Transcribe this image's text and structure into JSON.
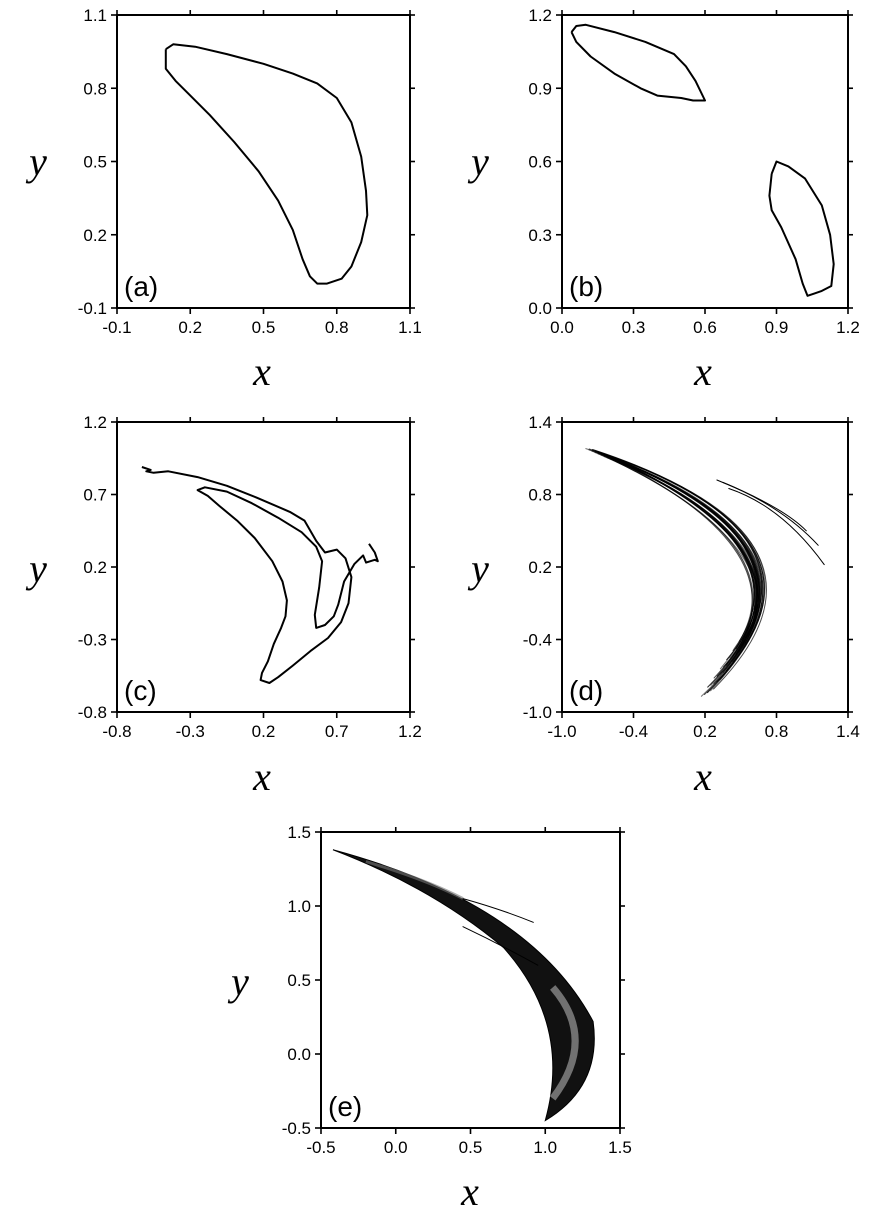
{
  "chart_data": [
    {
      "type": "scatter",
      "panel_label": "(a)",
      "xlabel": "x",
      "ylabel": "y",
      "xlim": [
        -0.1,
        1.1
      ],
      "ylim": [
        -0.1,
        1.1
      ],
      "xticks": [
        -0.1,
        0.2,
        0.5,
        0.8,
        1.1
      ],
      "yticks": [
        -0.1,
        0.2,
        0.5,
        0.8,
        1.1
      ],
      "xtick_labels": [
        "-0.1",
        "0.2",
        "0.5",
        "0.8",
        "1.1"
      ],
      "ytick_labels": [
        "-0.1",
        "0.2",
        "0.5",
        "0.8",
        "1.1"
      ],
      "curves": [
        [
          [
            0.1,
            0.96
          ],
          [
            0.13,
            0.98
          ],
          [
            0.22,
            0.97
          ],
          [
            0.35,
            0.94
          ],
          [
            0.5,
            0.9
          ],
          [
            0.62,
            0.86
          ],
          [
            0.72,
            0.82
          ],
          [
            0.8,
            0.76
          ],
          [
            0.86,
            0.66
          ],
          [
            0.9,
            0.52
          ],
          [
            0.92,
            0.38
          ],
          [
            0.925,
            0.28
          ],
          [
            0.9,
            0.17
          ],
          [
            0.86,
            0.07
          ],
          [
            0.82,
            0.02
          ],
          [
            0.76,
            0.0
          ],
          [
            0.72,
            0.0
          ],
          [
            0.69,
            0.03
          ],
          [
            0.66,
            0.1
          ],
          [
            0.62,
            0.22
          ],
          [
            0.56,
            0.34
          ],
          [
            0.48,
            0.46
          ],
          [
            0.38,
            0.58
          ],
          [
            0.28,
            0.69
          ],
          [
            0.19,
            0.78
          ],
          [
            0.14,
            0.83
          ],
          [
            0.1,
            0.88
          ],
          [
            0.1,
            0.96
          ]
        ]
      ]
    },
    {
      "type": "scatter",
      "panel_label": "(b)",
      "xlabel": "x",
      "ylabel": "y",
      "xlim": [
        0.0,
        1.2
      ],
      "ylim": [
        0.0,
        1.2
      ],
      "xticks": [
        0.0,
        0.3,
        0.6,
        0.9,
        1.2
      ],
      "yticks": [
        0.0,
        0.3,
        0.6,
        0.9,
        1.2
      ],
      "xtick_labels": [
        "0.0",
        "0.3",
        "0.6",
        "0.9",
        "1.2"
      ],
      "ytick_labels": [
        "0.0",
        "0.3",
        "0.6",
        "0.9",
        "1.2"
      ],
      "curves": [
        [
          [
            0.04,
            1.13
          ],
          [
            0.06,
            1.155
          ],
          [
            0.1,
            1.16
          ],
          [
            0.22,
            1.13
          ],
          [
            0.35,
            1.09
          ],
          [
            0.47,
            1.04
          ],
          [
            0.52,
            0.99
          ],
          [
            0.56,
            0.93
          ],
          [
            0.6,
            0.85
          ],
          [
            0.55,
            0.85
          ],
          [
            0.5,
            0.86
          ],
          [
            0.4,
            0.87
          ],
          [
            0.33,
            0.9
          ],
          [
            0.22,
            0.96
          ],
          [
            0.12,
            1.03
          ],
          [
            0.06,
            1.09
          ],
          [
            0.04,
            1.13
          ]
        ],
        [
          [
            0.88,
            0.55
          ],
          [
            0.9,
            0.6
          ],
          [
            0.95,
            0.58
          ],
          [
            1.02,
            0.53
          ],
          [
            1.09,
            0.42
          ],
          [
            1.125,
            0.3
          ],
          [
            1.14,
            0.18
          ],
          [
            1.13,
            0.09
          ],
          [
            1.09,
            0.07
          ],
          [
            1.06,
            0.06
          ],
          [
            1.03,
            0.05
          ],
          [
            1.01,
            0.1
          ],
          [
            0.98,
            0.2
          ],
          [
            0.92,
            0.33
          ],
          [
            0.88,
            0.4
          ],
          [
            0.87,
            0.46
          ],
          [
            0.88,
            0.55
          ]
        ]
      ]
    },
    {
      "type": "scatter",
      "panel_label": "(c)",
      "xlabel": "x",
      "ylabel": "y",
      "xlim": [
        -0.8,
        1.2
      ],
      "ylim": [
        -0.8,
        1.2
      ],
      "xticks": [
        -0.8,
        -0.3,
        0.2,
        0.7,
        1.2
      ],
      "yticks": [
        -0.8,
        -0.3,
        0.2,
        0.7,
        1.2
      ],
      "xtick_labels": [
        "-0.8",
        "-0.3",
        "0.2",
        "0.7",
        "1.2"
      ],
      "ytick_labels": [
        "-0.8",
        "-0.3",
        "0.2",
        "0.7",
        "1.2"
      ],
      "curves": [
        [
          [
            -0.63,
            0.89
          ],
          [
            -0.57,
            0.87
          ],
          [
            -0.6,
            0.86
          ],
          [
            -0.55,
            0.85
          ],
          [
            -0.45,
            0.86
          ],
          [
            -0.25,
            0.82
          ],
          [
            -0.05,
            0.76
          ],
          [
            0.15,
            0.68
          ],
          [
            0.38,
            0.58
          ],
          [
            0.48,
            0.52
          ],
          [
            0.56,
            0.38
          ],
          [
            0.62,
            0.3
          ],
          [
            0.7,
            0.32
          ],
          [
            0.76,
            0.26
          ],
          [
            0.8,
            0.13
          ],
          [
            0.78,
            -0.05
          ],
          [
            0.73,
            -0.18
          ],
          [
            0.64,
            -0.29
          ],
          [
            0.52,
            -0.38
          ],
          [
            0.4,
            -0.48
          ],
          [
            0.3,
            -0.56
          ],
          [
            0.24,
            -0.6
          ],
          [
            0.18,
            -0.58
          ],
          [
            0.19,
            -0.53
          ],
          [
            0.23,
            -0.45
          ],
          [
            0.27,
            -0.33
          ],
          [
            0.32,
            -0.22
          ],
          [
            0.35,
            -0.14
          ],
          [
            0.36,
            -0.03
          ],
          [
            0.33,
            0.1
          ],
          [
            0.26,
            0.24
          ],
          [
            0.14,
            0.4
          ],
          [
            0.02,
            0.52
          ],
          [
            -0.1,
            0.62
          ],
          [
            -0.18,
            0.69
          ],
          [
            -0.25,
            0.73
          ],
          [
            -0.2,
            0.75
          ],
          [
            -0.05,
            0.72
          ],
          [
            0.12,
            0.64
          ],
          [
            0.3,
            0.54
          ],
          [
            0.46,
            0.44
          ],
          [
            0.56,
            0.34
          ],
          [
            0.6,
            0.24
          ],
          [
            0.58,
            0.06
          ],
          [
            0.55,
            -0.13
          ],
          [
            0.56,
            -0.22
          ],
          [
            0.62,
            -0.2
          ],
          [
            0.68,
            -0.14
          ],
          [
            0.71,
            -0.06
          ],
          [
            0.75,
            0.1
          ],
          [
            0.82,
            0.22
          ],
          [
            0.88,
            0.28
          ],
          [
            0.9,
            0.23
          ],
          [
            0.93,
            0.24
          ],
          [
            0.96,
            0.25
          ],
          [
            0.98,
            0.24
          ],
          [
            0.96,
            0.3
          ],
          [
            0.92,
            0.36
          ]
        ]
      ]
    },
    {
      "type": "scatter",
      "panel_label": "(d)",
      "xlabel": "x",
      "ylabel": "y",
      "xlim": [
        -1.0,
        1.4
      ],
      "ylim": [
        -1.0,
        1.4
      ],
      "xticks": [
        -1.0,
        -0.4,
        0.2,
        0.8,
        1.4
      ],
      "yticks": [
        -1.0,
        -0.4,
        0.2,
        0.8,
        1.4
      ],
      "xtick_labels": [
        "-1.0",
        "-0.4",
        "0.2",
        "0.8",
        "1.4"
      ],
      "ytick_labels": [
        "-1.0",
        "-0.4",
        "0.2",
        "0.8",
        "1.4"
      ],
      "note_points": "chaotic attractor; strands traced as bands of points"
    },
    {
      "type": "scatter",
      "panel_label": "(e)",
      "xlabel": "x",
      "ylabel": "y",
      "xlim": [
        -0.5,
        1.5
      ],
      "ylim": [
        -0.5,
        1.5
      ],
      "xticks": [
        -0.5,
        0.0,
        0.5,
        1.0,
        1.5
      ],
      "yticks": [
        -0.5,
        0.0,
        0.5,
        1.0,
        1.5
      ],
      "xtick_labels": [
        "-0.5",
        "0.0",
        "0.5",
        "1.0",
        "1.5"
      ],
      "ytick_labels": [
        "-0.5",
        "0.0",
        "0.5",
        "1.0",
        "1.5"
      ]
    }
  ]
}
